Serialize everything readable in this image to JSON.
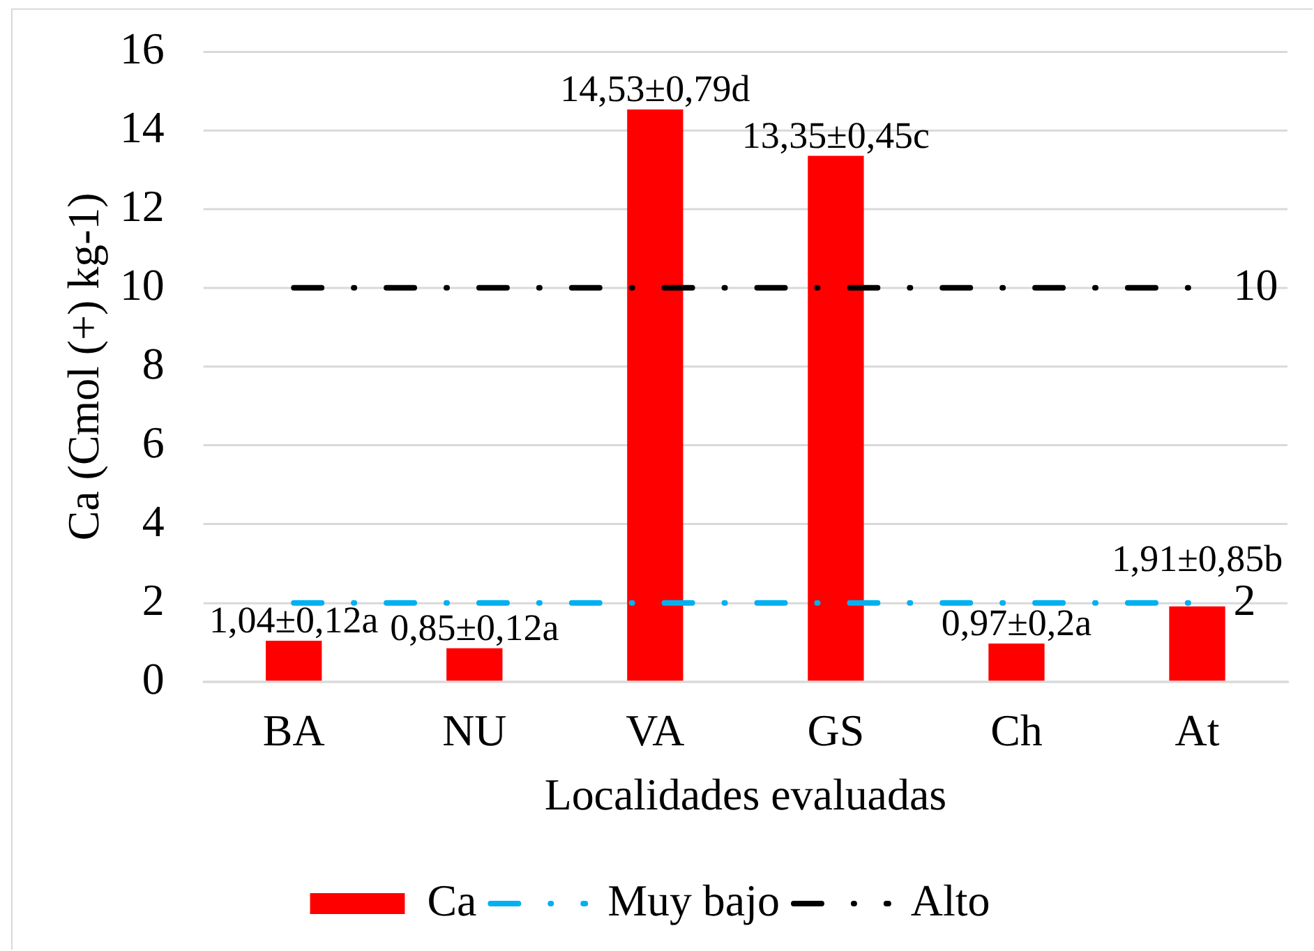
{
  "chart_data": {
    "type": "bar",
    "xlabel": "Localidades evaluadas",
    "ylabel": "Ca (Cmol (+) kg-1)",
    "categories": [
      "BA",
      "NU",
      "VA",
      "GS",
      "Ch",
      "At"
    ],
    "series": [
      {
        "name": "Ca",
        "color": "#ff0000",
        "values": [
          1.04,
          0.85,
          14.53,
          13.35,
          0.97,
          1.91
        ],
        "value_labels": [
          "1,04±0,12a",
          "0,85±0,12a",
          "14,53±0,79d",
          "13,35±0,45c",
          "0,97±0,2a",
          "1,91±0,85b"
        ]
      },
      {
        "name": "Muy bajo",
        "type": "line",
        "color": "#00b0f0",
        "line_style": "dashed",
        "values": [
          2,
          2,
          2,
          2,
          2,
          2
        ],
        "value_labels": [
          null,
          null,
          null,
          null,
          null,
          "2"
        ]
      },
      {
        "name": "Alto",
        "type": "line",
        "color": "#000000",
        "line_style": "dashed",
        "values": [
          10,
          10,
          10,
          10,
          10,
          10
        ],
        "value_labels": [
          null,
          null,
          null,
          null,
          null,
          "10"
        ]
      }
    ],
    "ylim": [
      0,
      16
    ],
    "yticks": [
      0,
      2,
      4,
      6,
      8,
      10,
      12,
      14,
      16
    ],
    "grid": "y",
    "legend": "bottom"
  }
}
